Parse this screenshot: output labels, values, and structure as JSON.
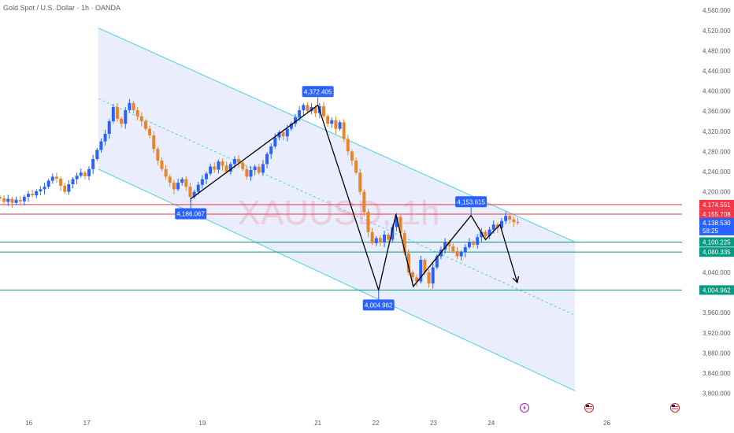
{
  "header": {
    "title": "Gold Spot / U.S. Dollar · 1h · OANDA"
  },
  "watermark": "XAUUSD, 1h",
  "colors": {
    "up": "#2962ff",
    "down": "#e8852b",
    "channel": "#4dd0e1",
    "channel_fill": "#e3e8fb",
    "resistance": "#f23645",
    "support": "#089981",
    "zigzag": "#000000",
    "callout": "#2962ff",
    "last_price": "#2962ff"
  },
  "chart_data": {
    "type": "candlestick",
    "title": "Gold Spot / U.S. Dollar · 1h · OANDA",
    "ylim": [
      3790,
      4565
    ],
    "xlim": [
      15.5,
      27.3
    ],
    "y_ticks": [
      {
        "v": 4560,
        "label": "4,560.000"
      },
      {
        "v": 4520,
        "label": "4,520.000"
      },
      {
        "v": 4480,
        "label": "4,480.000"
      },
      {
        "v": 4440,
        "label": "4,440.000"
      },
      {
        "v": 4400,
        "label": "4,400.000"
      },
      {
        "v": 4360,
        "label": "4,360.000"
      },
      {
        "v": 4320,
        "label": "4,320.000"
      },
      {
        "v": 4280,
        "label": "4,280.000"
      },
      {
        "v": 4240,
        "label": "4,240.000"
      },
      {
        "v": 4200,
        "label": "4,200.000"
      },
      {
        "v": 4040,
        "label": "4,040.000"
      },
      {
        "v": 3960,
        "label": "3,960.000"
      },
      {
        "v": 3920,
        "label": "3,920.000"
      },
      {
        "v": 3880,
        "label": "3,880.000"
      },
      {
        "v": 3840,
        "label": "3,840.000"
      },
      {
        "v": 3800,
        "label": "3,800.000"
      }
    ],
    "x_ticks": [
      {
        "v": 16,
        "label": "16"
      },
      {
        "v": 17,
        "label": "17"
      },
      {
        "v": 19,
        "label": "19"
      },
      {
        "v": 21,
        "label": "21"
      },
      {
        "v": 22,
        "label": "22"
      },
      {
        "v": 23,
        "label": "23"
      },
      {
        "v": 24,
        "label": "24"
      },
      {
        "v": 26,
        "label": "26"
      }
    ],
    "price_tags": [
      {
        "label": "4,174.551",
        "v": 4174.551,
        "kind": "resistance"
      },
      {
        "label": "4,155.708",
        "v": 4155.708,
        "kind": "resistance"
      },
      {
        "label": "4,138.530",
        "sub": "58:25",
        "v": 4138.53,
        "kind": "last"
      },
      {
        "label": "4,100.225",
        "v": 4100.225,
        "kind": "support"
      },
      {
        "label": "4,080.335",
        "v": 4080.335,
        "kind": "support"
      },
      {
        "label": "4,004.962",
        "v": 4004.962,
        "kind": "support"
      }
    ],
    "horizontal_lines": [
      {
        "v": 4174.551,
        "kind": "resistance"
      },
      {
        "v": 4155.708,
        "kind": "resistance"
      },
      {
        "v": 4100.225,
        "kind": "support"
      },
      {
        "v": 4080.335,
        "kind": "support"
      },
      {
        "v": 4004.962,
        "kind": "support"
      }
    ],
    "callouts": [
      {
        "label": "4,372.405",
        "x": 21.0,
        "v": 4372.405,
        "position": "above"
      },
      {
        "label": "4,186.067",
        "x": 18.8,
        "v": 4186.067,
        "position": "below"
      },
      {
        "label": "4,004.962",
        "x": 22.05,
        "v": 4004.962,
        "position": "below"
      },
      {
        "label": "4,153.615",
        "x": 23.65,
        "v": 4153.615,
        "position": "above"
      }
    ],
    "channel": {
      "upper": [
        [
          17.2,
          4525
        ],
        [
          25.45,
          4100
        ]
      ],
      "lower": [
        [
          17.2,
          4245
        ],
        [
          25.45,
          3805
        ]
      ],
      "mid": [
        [
          17.2,
          4385
        ],
        [
          25.45,
          3955
        ]
      ]
    },
    "zigzag": [
      [
        18.8,
        4186
      ],
      [
        21.0,
        4372
      ],
      [
        22.05,
        4005
      ],
      [
        22.35,
        4155
      ],
      [
        22.65,
        4012
      ],
      [
        23.65,
        4153
      ],
      [
        23.9,
        4105
      ],
      [
        24.15,
        4135
      ],
      [
        24.45,
        4020
      ]
    ],
    "candles": [
      {
        "x": 15.5,
        "o": 4190,
        "c": 4187
      },
      {
        "x": 15.57,
        "o": 4187,
        "c": 4180
      },
      {
        "x": 15.64,
        "o": 4180,
        "c": 4186
      },
      {
        "x": 15.71,
        "o": 4186,
        "c": 4178
      },
      {
        "x": 15.78,
        "o": 4178,
        "c": 4184
      },
      {
        "x": 15.85,
        "o": 4184,
        "c": 4181
      },
      {
        "x": 15.92,
        "o": 4181,
        "c": 4190
      },
      {
        "x": 15.99,
        "o": 4190,
        "c": 4196
      },
      {
        "x": 16.06,
        "o": 4196,
        "c": 4193
      },
      {
        "x": 16.13,
        "o": 4193,
        "c": 4201
      },
      {
        "x": 16.2,
        "o": 4201,
        "c": 4205
      },
      {
        "x": 16.27,
        "o": 4205,
        "c": 4210
      },
      {
        "x": 16.34,
        "o": 4210,
        "c": 4222
      },
      {
        "x": 16.41,
        "o": 4222,
        "c": 4230
      },
      {
        "x": 16.48,
        "o": 4230,
        "c": 4226
      },
      {
        "x": 16.55,
        "o": 4226,
        "c": 4212
      },
      {
        "x": 16.62,
        "o": 4212,
        "c": 4200
      },
      {
        "x": 16.69,
        "o": 4200,
        "c": 4215
      },
      {
        "x": 16.76,
        "o": 4215,
        "c": 4225
      },
      {
        "x": 16.83,
        "o": 4225,
        "c": 4232
      },
      {
        "x": 16.9,
        "o": 4232,
        "c": 4238
      },
      {
        "x": 16.97,
        "o": 4238,
        "c": 4231
      },
      {
        "x": 17.04,
        "o": 4231,
        "c": 4245
      },
      {
        "x": 17.11,
        "o": 4245,
        "c": 4265
      },
      {
        "x": 17.18,
        "o": 4265,
        "c": 4283
      },
      {
        "x": 17.25,
        "o": 4283,
        "c": 4300
      },
      {
        "x": 17.32,
        "o": 4300,
        "c": 4315
      },
      {
        "x": 17.39,
        "o": 4315,
        "c": 4340
      },
      {
        "x": 17.46,
        "o": 4340,
        "c": 4368
      },
      {
        "x": 17.53,
        "o": 4368,
        "c": 4345
      },
      {
        "x": 17.6,
        "o": 4345,
        "c": 4335
      },
      {
        "x": 17.67,
        "o": 4335,
        "c": 4362
      },
      {
        "x": 17.74,
        "o": 4362,
        "c": 4376
      },
      {
        "x": 17.81,
        "o": 4376,
        "c": 4362
      },
      {
        "x": 17.88,
        "o": 4362,
        "c": 4350
      },
      {
        "x": 17.95,
        "o": 4350,
        "c": 4340
      },
      {
        "x": 18.02,
        "o": 4340,
        "c": 4325
      },
      {
        "x": 18.09,
        "o": 4325,
        "c": 4312
      },
      {
        "x": 18.16,
        "o": 4312,
        "c": 4285
      },
      {
        "x": 18.23,
        "o": 4285,
        "c": 4262
      },
      {
        "x": 18.3,
        "o": 4262,
        "c": 4245
      },
      {
        "x": 18.37,
        "o": 4245,
        "c": 4230
      },
      {
        "x": 18.44,
        "o": 4230,
        "c": 4218
      },
      {
        "x": 18.51,
        "o": 4218,
        "c": 4205
      },
      {
        "x": 18.58,
        "o": 4205,
        "c": 4218
      },
      {
        "x": 18.65,
        "o": 4218,
        "c": 4225
      },
      {
        "x": 18.72,
        "o": 4225,
        "c": 4210
      },
      {
        "x": 18.79,
        "o": 4210,
        "c": 4190
      },
      {
        "x": 18.86,
        "o": 4190,
        "c": 4200
      },
      {
        "x": 18.93,
        "o": 4200,
        "c": 4214
      },
      {
        "x": 19.0,
        "o": 4214,
        "c": 4225
      },
      {
        "x": 19.07,
        "o": 4225,
        "c": 4236
      },
      {
        "x": 19.14,
        "o": 4236,
        "c": 4250
      },
      {
        "x": 19.21,
        "o": 4250,
        "c": 4244
      },
      {
        "x": 19.28,
        "o": 4244,
        "c": 4260
      },
      {
        "x": 19.35,
        "o": 4260,
        "c": 4252
      },
      {
        "x": 19.42,
        "o": 4252,
        "c": 4240
      },
      {
        "x": 19.49,
        "o": 4240,
        "c": 4255
      },
      {
        "x": 19.56,
        "o": 4255,
        "c": 4265
      },
      {
        "x": 19.63,
        "o": 4265,
        "c": 4258
      },
      {
        "x": 19.7,
        "o": 4258,
        "c": 4245
      },
      {
        "x": 19.77,
        "o": 4245,
        "c": 4230
      },
      {
        "x": 19.84,
        "o": 4230,
        "c": 4243
      },
      {
        "x": 19.91,
        "o": 4243,
        "c": 4250
      },
      {
        "x": 19.98,
        "o": 4250,
        "c": 4238
      },
      {
        "x": 20.05,
        "o": 4238,
        "c": 4255
      },
      {
        "x": 20.12,
        "o": 4255,
        "c": 4275
      },
      {
        "x": 20.19,
        "o": 4275,
        "c": 4290
      },
      {
        "x": 20.26,
        "o": 4290,
        "c": 4308
      },
      {
        "x": 20.33,
        "o": 4308,
        "c": 4318
      },
      {
        "x": 20.4,
        "o": 4318,
        "c": 4310
      },
      {
        "x": 20.47,
        "o": 4310,
        "c": 4325
      },
      {
        "x": 20.54,
        "o": 4325,
        "c": 4335
      },
      {
        "x": 20.61,
        "o": 4335,
        "c": 4348
      },
      {
        "x": 20.68,
        "o": 4348,
        "c": 4362
      },
      {
        "x": 20.75,
        "o": 4362,
        "c": 4372
      },
      {
        "x": 20.82,
        "o": 4372,
        "c": 4360
      },
      {
        "x": 20.89,
        "o": 4360,
        "c": 4368
      },
      {
        "x": 20.96,
        "o": 4368,
        "c": 4356
      },
      {
        "x": 21.03,
        "o": 4356,
        "c": 4370
      },
      {
        "x": 21.1,
        "o": 4370,
        "c": 4350
      },
      {
        "x": 21.17,
        "o": 4350,
        "c": 4335
      },
      {
        "x": 21.24,
        "o": 4335,
        "c": 4342
      },
      {
        "x": 21.31,
        "o": 4342,
        "c": 4325
      },
      {
        "x": 21.38,
        "o": 4325,
        "c": 4338
      },
      {
        "x": 21.45,
        "o": 4338,
        "c": 4305
      },
      {
        "x": 21.52,
        "o": 4305,
        "c": 4280
      },
      {
        "x": 21.59,
        "o": 4280,
        "c": 4262
      },
      {
        "x": 21.66,
        "o": 4262,
        "c": 4238
      },
      {
        "x": 21.73,
        "o": 4238,
        "c": 4200
      },
      {
        "x": 21.8,
        "o": 4200,
        "c": 4160
      },
      {
        "x": 21.87,
        "o": 4160,
        "c": 4120
      },
      {
        "x": 21.94,
        "o": 4120,
        "c": 4098
      },
      {
        "x": 22.01,
        "o": 4098,
        "c": 4108
      },
      {
        "x": 22.08,
        "o": 4108,
        "c": 4100
      },
      {
        "x": 22.15,
        "o": 4100,
        "c": 4115
      },
      {
        "x": 22.22,
        "o": 4115,
        "c": 4105
      },
      {
        "x": 22.29,
        "o": 4105,
        "c": 4130
      },
      {
        "x": 22.36,
        "o": 4130,
        "c": 4150
      },
      {
        "x": 22.43,
        "o": 4150,
        "c": 4118
      },
      {
        "x": 22.5,
        "o": 4118,
        "c": 4078
      },
      {
        "x": 22.57,
        "o": 4078,
        "c": 4040
      },
      {
        "x": 22.64,
        "o": 4040,
        "c": 4030
      },
      {
        "x": 22.71,
        "o": 4030,
        "c": 4022
      },
      {
        "x": 22.78,
        "o": 4022,
        "c": 4065
      },
      {
        "x": 22.85,
        "o": 4065,
        "c": 4040
      },
      {
        "x": 22.92,
        "o": 4040,
        "c": 4018
      },
      {
        "x": 22.99,
        "o": 4018,
        "c": 4050
      },
      {
        "x": 23.06,
        "o": 4050,
        "c": 4072
      },
      {
        "x": 23.13,
        "o": 4072,
        "c": 4085
      },
      {
        "x": 23.2,
        "o": 4085,
        "c": 4100
      },
      {
        "x": 23.27,
        "o": 4100,
        "c": 4092
      },
      {
        "x": 23.34,
        "o": 4092,
        "c": 4082
      },
      {
        "x": 23.41,
        "o": 4082,
        "c": 4072
      },
      {
        "x": 23.48,
        "o": 4072,
        "c": 4080
      },
      {
        "x": 23.55,
        "o": 4080,
        "c": 4090
      },
      {
        "x": 23.62,
        "o": 4090,
        "c": 4100
      },
      {
        "x": 23.69,
        "o": 4100,
        "c": 4095
      },
      {
        "x": 23.76,
        "o": 4095,
        "c": 4110
      },
      {
        "x": 23.83,
        "o": 4110,
        "c": 4120
      },
      {
        "x": 23.9,
        "o": 4120,
        "c": 4112
      },
      {
        "x": 23.97,
        "o": 4112,
        "c": 4125
      },
      {
        "x": 24.04,
        "o": 4125,
        "c": 4135
      },
      {
        "x": 24.11,
        "o": 4135,
        "c": 4128
      },
      {
        "x": 24.18,
        "o": 4128,
        "c": 4142
      },
      {
        "x": 24.25,
        "o": 4142,
        "c": 4152
      },
      {
        "x": 24.32,
        "o": 4152,
        "c": 4145
      },
      {
        "x": 24.39,
        "o": 4145,
        "c": 4140
      },
      {
        "x": 24.46,
        "o": 4140,
        "c": 4138
      }
    ]
  }
}
